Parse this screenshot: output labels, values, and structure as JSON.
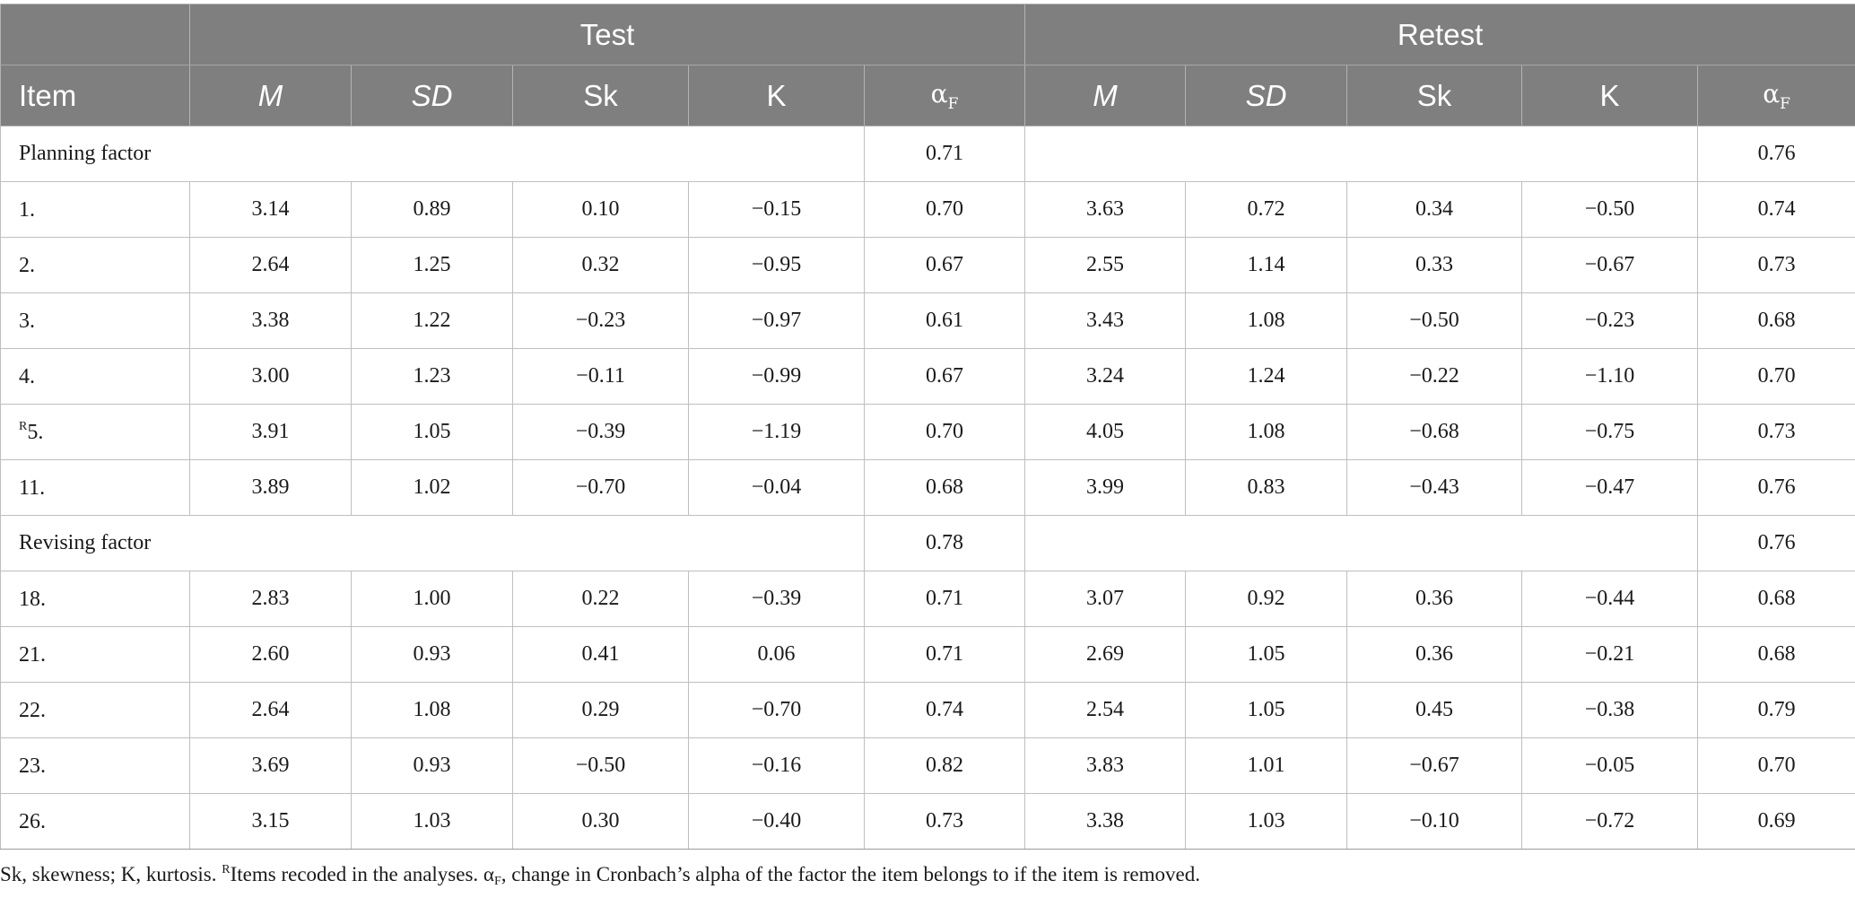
{
  "header": {
    "groups": [
      "Test",
      "Retest"
    ],
    "item_label": "Item",
    "columns": [
      "M",
      "SD",
      "Sk",
      "K"
    ],
    "alpha_symbol": "α",
    "alpha_sub": "F"
  },
  "factors": [
    {
      "label": "Planning factor",
      "test_alpha": "0.71",
      "retest_alpha": "0.76",
      "rows": [
        {
          "sup": "",
          "item": "1.",
          "test": [
            "3.14",
            "0.89",
            "0.10",
            "−0.15",
            "0.70"
          ],
          "retest": [
            "3.63",
            "0.72",
            "0.34",
            "−0.50",
            "0.74"
          ]
        },
        {
          "sup": "",
          "item": "2.",
          "test": [
            "2.64",
            "1.25",
            "0.32",
            "−0.95",
            "0.67"
          ],
          "retest": [
            "2.55",
            "1.14",
            "0.33",
            "−0.67",
            "0.73"
          ]
        },
        {
          "sup": "",
          "item": "3.",
          "test": [
            "3.38",
            "1.22",
            "−0.23",
            "−0.97",
            "0.61"
          ],
          "retest": [
            "3.43",
            "1.08",
            "−0.50",
            "−0.23",
            "0.68"
          ]
        },
        {
          "sup": "",
          "item": "4.",
          "test": [
            "3.00",
            "1.23",
            "−0.11",
            "−0.99",
            "0.67"
          ],
          "retest": [
            "3.24",
            "1.24",
            "−0.22",
            "−1.10",
            "0.70"
          ]
        },
        {
          "sup": "R",
          "item": "5.",
          "test": [
            "3.91",
            "1.05",
            "−0.39",
            "−1.19",
            "0.70"
          ],
          "retest": [
            "4.05",
            "1.08",
            "−0.68",
            "−0.75",
            "0.73"
          ]
        },
        {
          "sup": "",
          "item": "11.",
          "test": [
            "3.89",
            "1.02",
            "−0.70",
            "−0.04",
            "0.68"
          ],
          "retest": [
            "3.99",
            "0.83",
            "−0.43",
            "−0.47",
            "0.76"
          ]
        }
      ]
    },
    {
      "label": "Revising factor",
      "test_alpha": "0.78",
      "retest_alpha": "0.76",
      "rows": [
        {
          "sup": "",
          "item": "18.",
          "test": [
            "2.83",
            "1.00",
            "0.22",
            "−0.39",
            "0.71"
          ],
          "retest": [
            "3.07",
            "0.92",
            "0.36",
            "−0.44",
            "0.68"
          ]
        },
        {
          "sup": "",
          "item": "21.",
          "test": [
            "2.60",
            "0.93",
            "0.41",
            "0.06",
            "0.71"
          ],
          "retest": [
            "2.69",
            "1.05",
            "0.36",
            "−0.21",
            "0.68"
          ]
        },
        {
          "sup": "",
          "item": "22.",
          "test": [
            "2.64",
            "1.08",
            "0.29",
            "−0.70",
            "0.74"
          ],
          "retest": [
            "2.54",
            "1.05",
            "0.45",
            "−0.38",
            "0.79"
          ]
        },
        {
          "sup": "",
          "item": "23.",
          "test": [
            "3.69",
            "0.93",
            "−0.50",
            "−0.16",
            "0.82"
          ],
          "retest": [
            "3.83",
            "1.01",
            "−0.67",
            "−0.05",
            "0.70"
          ]
        },
        {
          "sup": "",
          "item": "26.",
          "test": [
            "3.15",
            "1.03",
            "0.30",
            "−0.40",
            "0.73"
          ],
          "retest": [
            "3.38",
            "1.03",
            "−0.10",
            "−0.72",
            "0.69"
          ]
        }
      ]
    }
  ],
  "note": {
    "part1": "Sk, skewness; K, kurtosis. ",
    "sup": "R",
    "part2": "Items recoded in the analyses. α",
    "sub": "F",
    "part3": ", change in Cronbach’s alpha of the factor the item belongs to if the item is removed."
  }
}
